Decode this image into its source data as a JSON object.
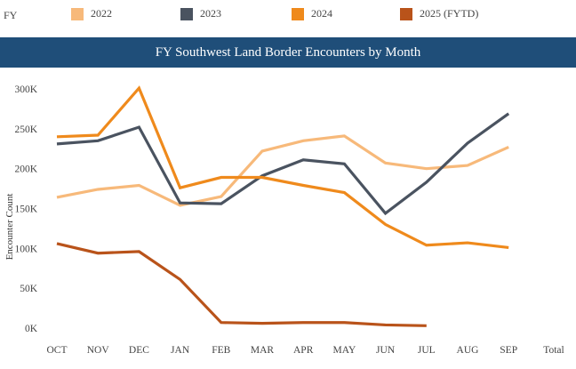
{
  "legend": {
    "label": "FY",
    "items": [
      {
        "name": "2022",
        "color": "#f7b97a"
      },
      {
        "name": "2023",
        "color": "#4a5360"
      },
      {
        "name": "2024",
        "color": "#ef8a1c"
      },
      {
        "name": "2025 (FYTD)",
        "color": "#b9531a"
      }
    ]
  },
  "chart_data": {
    "type": "line",
    "title": "FY Southwest Land Border Encounters by Month",
    "xlabel": "",
    "ylabel": "Encounter Count",
    "categories": [
      "OCT",
      "NOV",
      "DEC",
      "JAN",
      "FEB",
      "MAR",
      "APR",
      "MAY",
      "JUN",
      "JUL",
      "AUG",
      "SEP"
    ],
    "extra_x_label": "Total",
    "yticks": [
      "0K",
      "50K",
      "100K",
      "150K",
      "200K",
      "250K",
      "300K"
    ],
    "ylim": [
      0,
      300000
    ],
    "grid": false,
    "legend_position": "top",
    "series": [
      {
        "name": "2022",
        "color": "#f7b97a",
        "values": [
          164000,
          174000,
          179000,
          154000,
          165000,
          222000,
          235000,
          241000,
          207000,
          200000,
          204000,
          227000
        ]
      },
      {
        "name": "2023",
        "color": "#4a5360",
        "values": [
          231000,
          235000,
          252000,
          157000,
          156000,
          191000,
          211000,
          206000,
          144000,
          183000,
          232000,
          269000
        ]
      },
      {
        "name": "2024",
        "color": "#ef8a1c",
        "values": [
          240000,
          242000,
          301000,
          176000,
          189000,
          189000,
          179000,
          170000,
          130000,
          104000,
          107000,
          101000
        ]
      },
      {
        "name": "2025 (FYTD)",
        "color": "#b9531a",
        "values": [
          106000,
          94000,
          96000,
          61000,
          7000,
          6000,
          7000,
          7000,
          4000,
          3000,
          null,
          null
        ]
      }
    ]
  }
}
